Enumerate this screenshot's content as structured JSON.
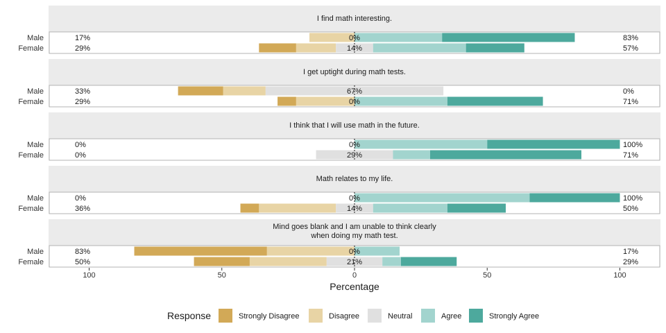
{
  "chart_data": {
    "type": "bar",
    "subtype": "diverging-stacked-likert",
    "xlabel": "Percentage",
    "x_ticks": [
      "100",
      "50",
      "0",
      "50",
      "100"
    ],
    "x_range": [
      -100,
      100
    ],
    "legend": {
      "title": "Response",
      "position": "bottom",
      "entries": [
        {
          "name": "Strongly Disagree",
          "color": "#D2A957"
        },
        {
          "name": "Disagree",
          "color": "#E8D4A5"
        },
        {
          "name": "Neutral",
          "color": "#E0E0E0"
        },
        {
          "name": "Agree",
          "color": "#A2D4CE"
        },
        {
          "name": "Strongly Agree",
          "color": "#4DA99D"
        }
      ]
    },
    "panels": [
      {
        "title_lines": [
          "I find math interesting."
        ],
        "rows": [
          {
            "group": "Male",
            "values": [
              0,
              17,
              0,
              33,
              50
            ],
            "left_label": "17%",
            "center_label": "0%",
            "right_label": "83%"
          },
          {
            "group": "Female",
            "values": [
              14,
              15,
              14,
              35,
              22
            ],
            "left_label": "29%",
            "center_label": "14%",
            "right_label": "57%"
          }
        ]
      },
      {
        "title_lines": [
          "I get uptight during math tests."
        ],
        "rows": [
          {
            "group": "Male",
            "values": [
              17,
              16,
              67,
              0,
              0
            ],
            "left_label": "33%",
            "center_label": "67%",
            "right_label": "0%"
          },
          {
            "group": "Female",
            "values": [
              7,
              22,
              0,
              35,
              36
            ],
            "left_label": "29%",
            "center_label": "0%",
            "right_label": "71%"
          }
        ]
      },
      {
        "title_lines": [
          "I think that I will use math in the future."
        ],
        "rows": [
          {
            "group": "Male",
            "values": [
              0,
              0,
              0,
              50,
              50
            ],
            "left_label": "0%",
            "center_label": "0%",
            "right_label": "100%"
          },
          {
            "group": "Female",
            "values": [
              0,
              0,
              29,
              14,
              57
            ],
            "left_label": "0%",
            "center_label": "29%",
            "right_label": "71%"
          }
        ]
      },
      {
        "title_lines": [
          "Math relates to my life."
        ],
        "rows": [
          {
            "group": "Male",
            "values": [
              0,
              0,
              0,
              66,
              34
            ],
            "left_label": "0%",
            "center_label": "0%",
            "right_label": "100%"
          },
          {
            "group": "Female",
            "values": [
              7,
              29,
              14,
              28,
              22
            ],
            "left_label": "36%",
            "center_label": "14%",
            "right_label": "50%"
          }
        ]
      },
      {
        "title_lines": [
          "Mind goes blank and I am unable to think clearly",
          "when doing my math test."
        ],
        "rows": [
          {
            "group": "Male",
            "values": [
              50,
              33,
              0,
              17,
              0
            ],
            "left_label": "83%",
            "center_label": "0%",
            "right_label": "17%"
          },
          {
            "group": "Female",
            "values": [
              21,
              29,
              21,
              7,
              21
            ],
            "left_label": "50%",
            "center_label": "21%",
            "right_label": "29%"
          }
        ]
      }
    ]
  }
}
